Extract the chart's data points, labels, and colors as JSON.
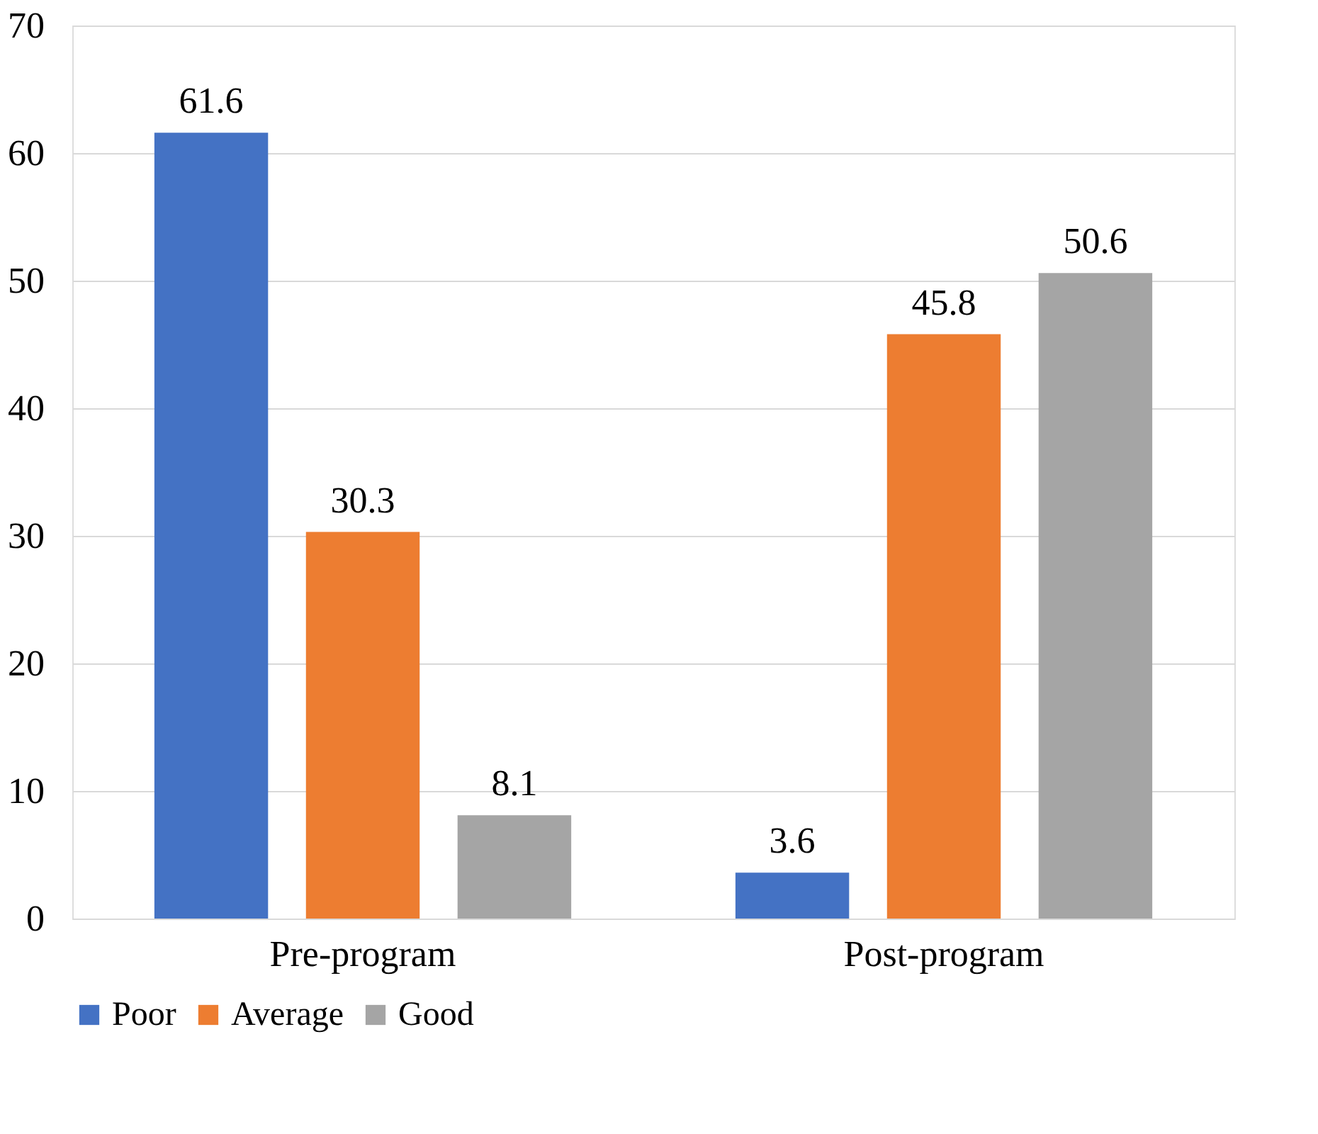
{
  "chart_data": {
    "type": "bar",
    "categories": [
      "Pre-program",
      "Post-program"
    ],
    "series": [
      {
        "name": "Poor",
        "color": "#4472c4",
        "values": [
          61.6,
          3.6
        ]
      },
      {
        "name": "Average",
        "color": "#ed7d31",
        "values": [
          30.3,
          45.8
        ]
      },
      {
        "name": "Good",
        "color": "#a5a5a5",
        "values": [
          8.1,
          50.6
        ]
      }
    ],
    "ylim": [
      0,
      70
    ],
    "yticks": [
      0,
      10,
      20,
      30,
      40,
      50,
      60,
      70
    ],
    "grid": "y",
    "legend": "bottom",
    "data_labels": true
  }
}
